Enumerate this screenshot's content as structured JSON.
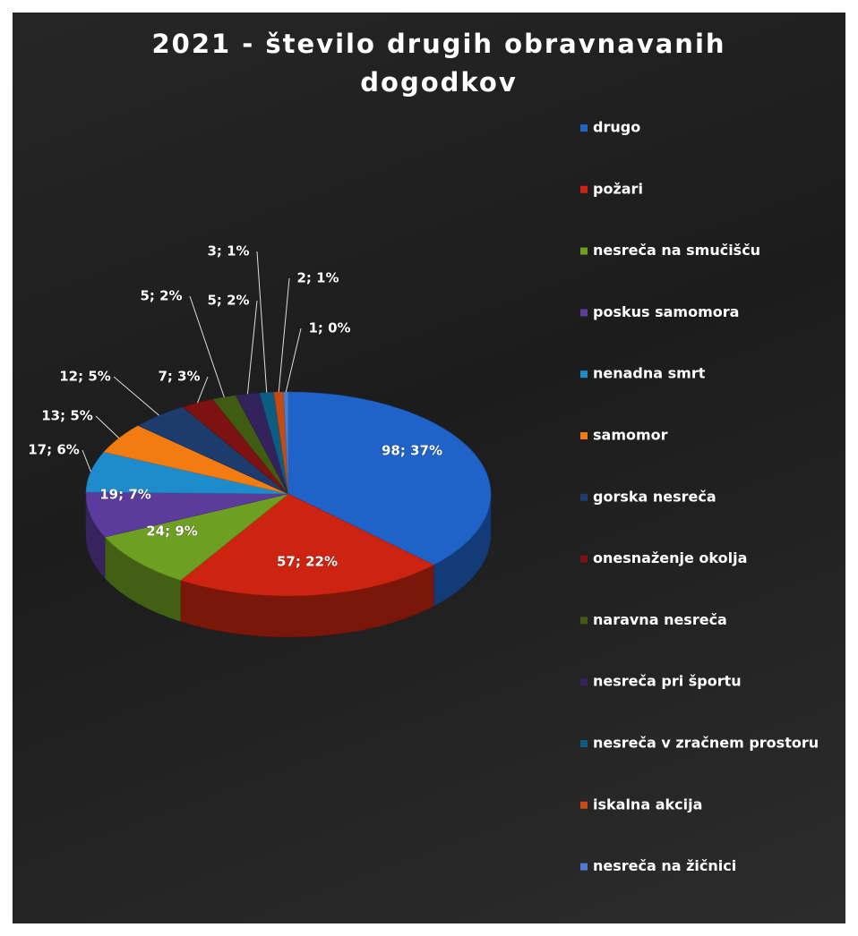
{
  "chart_data": {
    "type": "pie",
    "title": "2021 - število drugih obravnavanih dogodkov",
    "categories": [
      "drugo",
      "požari",
      "nesreča na smučišču",
      "poskus samomora",
      "nenadna smrt",
      "samomor",
      "gorska nesreča",
      "onesnaženje okolja",
      "naravna nesreča",
      "nesreča pri športu",
      "nesreča v zračnem prostoru",
      "iskalna akcija",
      "nesreča na žičnici"
    ],
    "values": [
      98,
      57,
      24,
      19,
      17,
      13,
      12,
      7,
      5,
      5,
      3,
      2,
      1
    ],
    "value_labels": [
      "98; 37%",
      "57; 22%",
      "24; 9%",
      "19; 7%",
      "17; 6%",
      "13; 5%",
      "12; 5%",
      "7; 3%",
      "5; 2%",
      "5; 2%",
      "3; 1%",
      "2; 1%",
      "1; 0%"
    ],
    "colors": [
      "#1f63c8",
      "#cc2410",
      "#6e9e22",
      "#5b3c9c",
      "#1e8ccc",
      "#f27c12",
      "#1b3c6c",
      "#7c1212",
      "#405c12",
      "#34225c",
      "#0e5c82",
      "#c44c12",
      "#4c7ccc"
    ],
    "legend": "right"
  }
}
